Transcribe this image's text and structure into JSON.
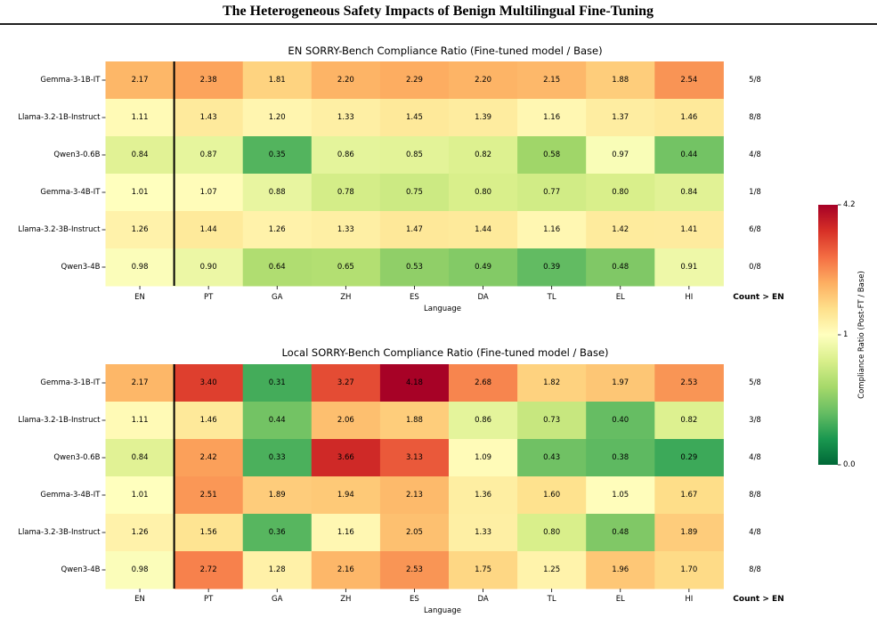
{
  "page": {
    "header": "The Heterogeneous Safety Impacts of Benign Multilingual Fine-Tuning"
  },
  "chart_data": [
    {
      "type": "heatmap",
      "title": "EN SORRY-Bench Compliance Ratio (Fine-tuned model / Base)",
      "xlabel": "Language",
      "x": [
        "EN",
        "PT",
        "GA",
        "ZH",
        "ES",
        "DA",
        "TL",
        "EL",
        "HI"
      ],
      "y": [
        "Gemma-3-1B-IT",
        "Llama-3.2-1B-Instruct",
        "Qwen3-0.6B",
        "Gemma-3-4B-IT",
        "Llama-3.2-3B-Instruct",
        "Qwen3-4B"
      ],
      "values": [
        [
          2.17,
          2.38,
          1.81,
          2.2,
          2.29,
          2.2,
          2.15,
          1.88,
          2.54
        ],
        [
          1.11,
          1.43,
          1.2,
          1.33,
          1.45,
          1.39,
          1.16,
          1.37,
          1.46
        ],
        [
          0.84,
          0.87,
          0.35,
          0.86,
          0.85,
          0.82,
          0.58,
          0.97,
          0.44
        ],
        [
          1.01,
          1.07,
          0.88,
          0.78,
          0.75,
          0.8,
          0.77,
          0.8,
          0.84
        ],
        [
          1.26,
          1.44,
          1.26,
          1.33,
          1.47,
          1.44,
          1.16,
          1.42,
          1.41
        ],
        [
          0.98,
          0.9,
          0.64,
          0.65,
          0.53,
          0.49,
          0.39,
          0.48,
          0.91
        ]
      ],
      "count_header": "Count > EN",
      "counts": [
        "5/8",
        "8/8",
        "4/8",
        "1/8",
        "6/8",
        "0/8"
      ]
    },
    {
      "type": "heatmap",
      "title": "Local SORRY-Bench Compliance Ratio (Fine-tuned model / Base)",
      "xlabel": "Language",
      "x": [
        "EN",
        "PT",
        "GA",
        "ZH",
        "ES",
        "DA",
        "TL",
        "EL",
        "HI"
      ],
      "y": [
        "Gemma-3-1B-IT",
        "Llama-3.2-1B-Instruct",
        "Qwen3-0.6B",
        "Gemma-3-4B-IT",
        "Llama-3.2-3B-Instruct",
        "Qwen3-4B"
      ],
      "values": [
        [
          2.17,
          3.4,
          0.31,
          3.27,
          4.18,
          2.68,
          1.82,
          1.97,
          2.53
        ],
        [
          1.11,
          1.46,
          0.44,
          2.06,
          1.88,
          0.86,
          0.73,
          0.4,
          0.82
        ],
        [
          0.84,
          2.42,
          0.33,
          3.66,
          3.13,
          1.09,
          0.43,
          0.38,
          0.29
        ],
        [
          1.01,
          2.51,
          1.89,
          1.94,
          2.13,
          1.36,
          1.6,
          1.05,
          1.67
        ],
        [
          1.26,
          1.56,
          0.36,
          1.16,
          2.05,
          1.33,
          0.8,
          0.48,
          1.89
        ],
        [
          0.98,
          2.72,
          1.28,
          2.16,
          2.53,
          1.75,
          1.25,
          1.96,
          1.7
        ]
      ],
      "count_header": "Count > EN",
      "counts": [
        "5/8",
        "3/8",
        "4/8",
        "8/8",
        "4/8",
        "8/8"
      ]
    }
  ],
  "colorbar": {
    "label": "Compliance Ratio (Post-FT / Base)",
    "vmin": 0.0,
    "vcenter": 1.0,
    "vmax": 4.2,
    "ticks": [
      {
        "label": "4.2",
        "value": 4.2
      },
      {
        "label": "1",
        "value": 1.0
      },
      {
        "label": "0.0",
        "value": 0.0
      }
    ],
    "colors": [
      "#006837",
      "#1a9850",
      "#66bd63",
      "#a6d96a",
      "#d9ef8b",
      "#ffffbf",
      "#fee08b",
      "#fdae61",
      "#f46d43",
      "#d73027",
      "#a50026"
    ]
  }
}
